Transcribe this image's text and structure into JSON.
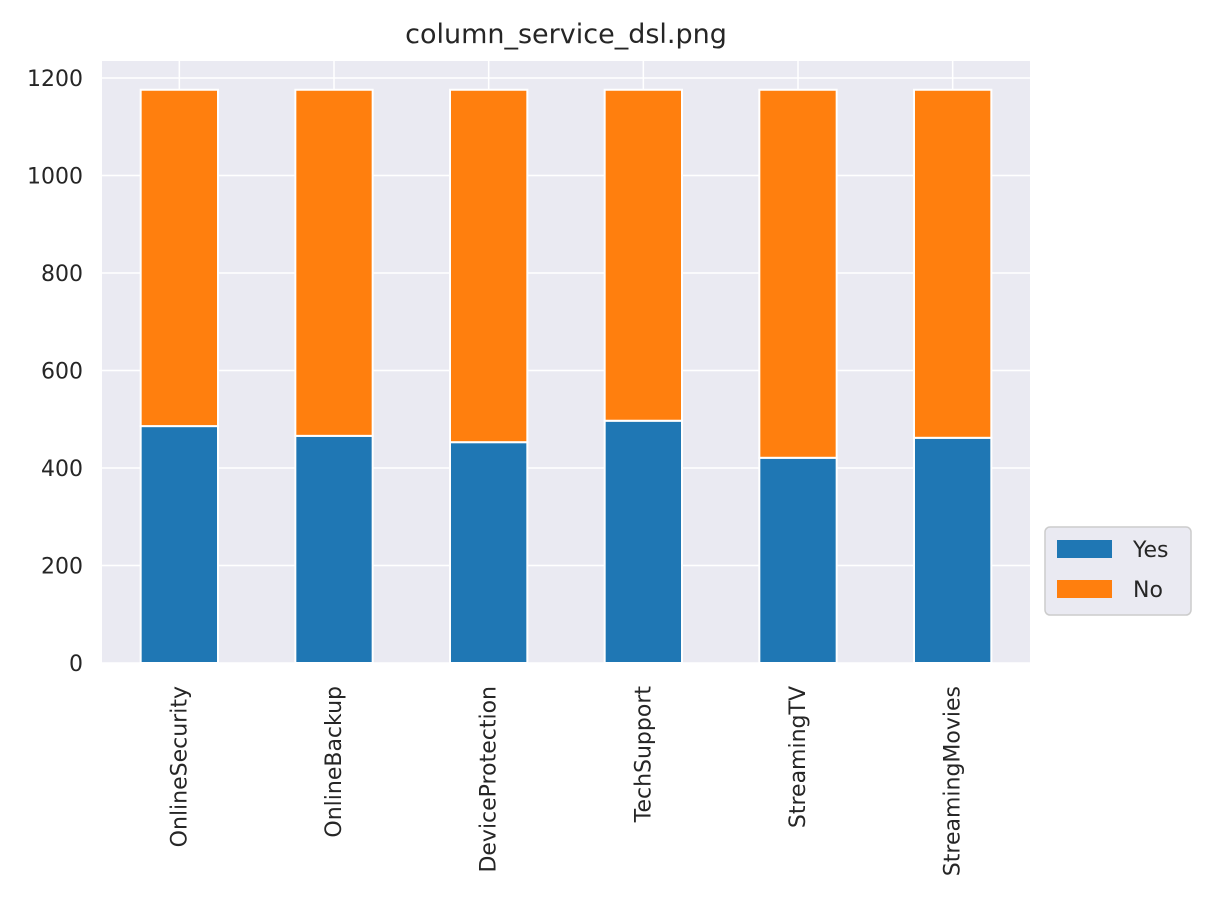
{
  "chart_data": {
    "type": "bar",
    "stacked": true,
    "title": "column_service_dsl.png",
    "xlabel": "",
    "ylabel": "",
    "categories": [
      "OnlineSecurity",
      "OnlineBackup",
      "DeviceProtection",
      "TechSupport",
      "StreamingTV",
      "StreamingMovies"
    ],
    "series": [
      {
        "name": "Yes",
        "color": "#1f77b4",
        "values": [
          486,
          466,
          453,
          497,
          421,
          462
        ]
      },
      {
        "name": "No",
        "color": "#ff7f0e",
        "values": [
          690,
          710,
          723,
          679,
          755,
          714
        ]
      }
    ],
    "ylim": [
      0,
      1235
    ],
    "yticks": [
      0,
      200,
      400,
      600,
      800,
      1000,
      1200
    ],
    "grid": true,
    "legend_position": "lower-right-outside",
    "background_color": "#eaeaf2"
  }
}
